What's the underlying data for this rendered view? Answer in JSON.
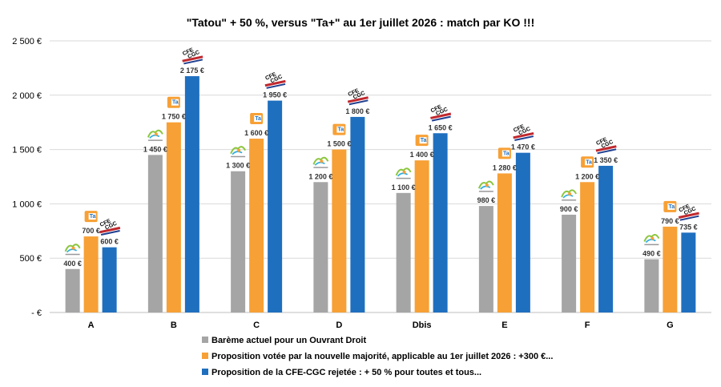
{
  "chart_data": {
    "type": "bar",
    "title": "\"Tatou\" + 50 %,  versus \"Ta+\" au 1er juillet 2026 : match par KO !!!",
    "categories": [
      "A",
      "B",
      "C",
      "D",
      "Dbis",
      "E",
      "F",
      "G"
    ],
    "series": [
      {
        "name": "Barème actuel pour un Ouvrant Droit",
        "color": "#a5a5a5",
        "values": [
          400,
          1450,
          1300,
          1200,
          1100,
          980,
          900,
          490
        ],
        "labels": [
          "400 €",
          "1 450 €",
          "1 300 €",
          "1 200 €",
          "1 100 €",
          "980 €",
          "900 €",
          "490 €"
        ],
        "badge_icon": "tatou-logo-icon"
      },
      {
        "name": "Proposition votée par la nouvelle majorité, applicable au 1er juillet 2026 : +300 €...",
        "color": "#f7a035",
        "values": [
          700,
          1750,
          1600,
          1500,
          1400,
          1280,
          1200,
          790
        ],
        "labels": [
          "700 €",
          "1 750 €",
          "1 600 €",
          "1 500 €",
          "1 400 €",
          "1 280 €",
          "1 200 €",
          "790 €"
        ],
        "badge_icon": "ta-plus-logo-icon"
      },
      {
        "name": "Proposition de la CFE-CGC rejetée : + 50 % pour toutes et tous...",
        "color": "#1f6fbf",
        "values": [
          600,
          2175,
          1950,
          1800,
          1650,
          1470,
          1350,
          735
        ],
        "labels": [
          "600 €",
          "2 175 €",
          "1 950 €",
          "1 800 €",
          "1 650 €",
          "1 470 €",
          "1 350 €",
          "735 €"
        ],
        "badge_icon": "cfe-cgc-logo-icon"
      }
    ],
    "y_ticks": [
      {
        "value": 0,
        "label": "-  €"
      },
      {
        "value": 500,
        "label": "500 €"
      },
      {
        "value": 1000,
        "label": "1 000 €"
      },
      {
        "value": 1500,
        "label": "1 500 €"
      },
      {
        "value": 2000,
        "label": "2 000 €"
      },
      {
        "value": 2500,
        "label": "2 500 €"
      }
    ],
    "ylim": [
      0,
      2500
    ],
    "grid": true,
    "legend_position": "bottom-left",
    "xlabel": "",
    "ylabel": ""
  }
}
